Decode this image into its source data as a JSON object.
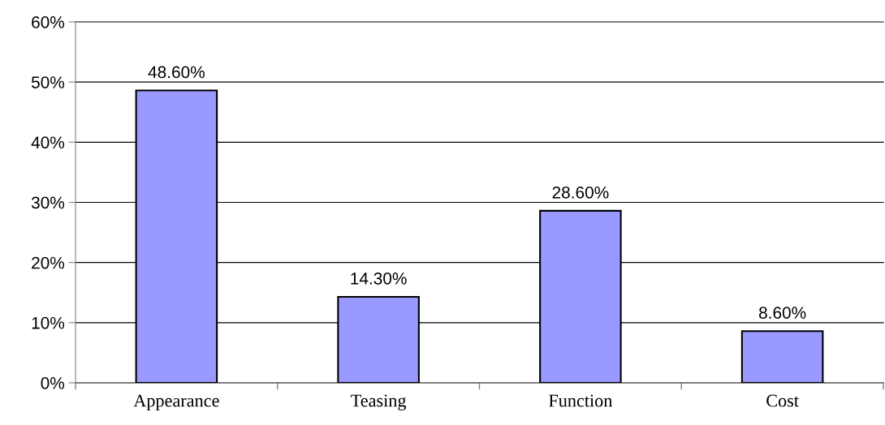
{
  "chart_data": {
    "type": "bar",
    "categories": [
      "Appearance",
      "Teasing",
      "Function",
      "Cost"
    ],
    "values": [
      48.6,
      14.3,
      28.6,
      8.6
    ],
    "value_labels": [
      "48.60%",
      "14.30%",
      "28.60%",
      "8.60%"
    ],
    "color": "#9999ff",
    "ylim": [
      0,
      60
    ],
    "yticks": [
      {
        "value": 0,
        "label": "0%"
      },
      {
        "value": 10,
        "label": "10%"
      },
      {
        "value": 20,
        "label": "20%"
      },
      {
        "value": 30,
        "label": "30%"
      },
      {
        "value": 40,
        "label": "40%"
      },
      {
        "value": 50,
        "label": "50%"
      },
      {
        "value": 60,
        "label": "60%"
      }
    ],
    "grid": "y",
    "legend": false
  }
}
